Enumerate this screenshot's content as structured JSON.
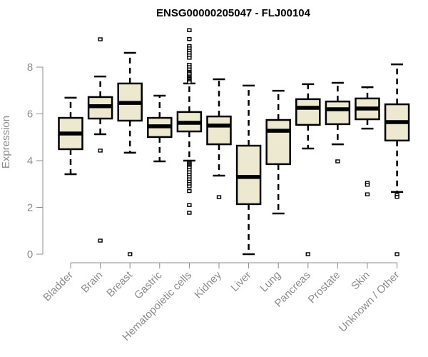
{
  "chart_data": {
    "type": "boxplot",
    "title": "ENSG00000205047 - FLJ00104",
    "xlabel": "",
    "ylabel": "Expression",
    "ylim": [
      0,
      9.6
    ],
    "yticks": [
      0,
      2,
      4,
      6,
      8
    ],
    "grid": false,
    "legend": "none",
    "box_fill": "#ede8d0",
    "box_stroke": "#000000",
    "axis_color": "#8c8c8c",
    "categories": [
      "Bladder",
      "Brain",
      "Breast",
      "Gastric",
      "Hematopoietic cells",
      "Kidney",
      "Liver",
      "Lung",
      "Pancreas",
      "Prostate",
      "Skin",
      "Unknown / Other"
    ],
    "series": [
      {
        "name": "Bladder",
        "whisker_low": 3.42,
        "q1": 4.49,
        "median": 5.16,
        "q3": 5.83,
        "whisker_high": 6.69,
        "outliers": []
      },
      {
        "name": "Brain",
        "whisker_low": 5.13,
        "q1": 5.8,
        "median": 6.33,
        "q3": 6.72,
        "whisker_high": 7.6,
        "outliers": [
          9.19,
          4.43,
          0.58
        ]
      },
      {
        "name": "Breast",
        "whisker_low": 4.34,
        "q1": 5.71,
        "median": 6.47,
        "q3": 7.3,
        "whisker_high": 8.61,
        "outliers": [
          0.0
        ]
      },
      {
        "name": "Gastric",
        "whisker_low": 3.97,
        "q1": 5.01,
        "median": 5.47,
        "q3": 5.83,
        "whisker_high": 6.78,
        "outliers": []
      },
      {
        "name": "Hematopoietic cells",
        "whisker_low": 4.0,
        "q1": 5.25,
        "median": 5.62,
        "q3": 6.08,
        "whisker_high": 7.3,
        "outliers": [
          9.58,
          9.2,
          8.9,
          8.8,
          8.7,
          8.6,
          8.5,
          8.4,
          8.1,
          8.0,
          7.9,
          7.8,
          7.75,
          7.7,
          7.6,
          7.55,
          7.5,
          7.45,
          7.4,
          7.35,
          3.95,
          3.9,
          3.85,
          3.8,
          3.75,
          3.7,
          3.6,
          3.5,
          3.4,
          3.3,
          3.2,
          3.1,
          3.0,
          2.9,
          2.7,
          2.1,
          1.77
        ]
      },
      {
        "name": "Kidney",
        "whisker_low": 3.36,
        "q1": 4.7,
        "median": 5.5,
        "q3": 5.89,
        "whisker_high": 7.48,
        "outliers": [
          2.44
        ]
      },
      {
        "name": "Liver",
        "whisker_low": 0.0,
        "q1": 2.14,
        "median": 3.3,
        "q3": 4.64,
        "whisker_high": 7.21,
        "outliers": []
      },
      {
        "name": "Lung",
        "whisker_low": 1.74,
        "q1": 3.85,
        "median": 5.28,
        "q3": 5.74,
        "whisker_high": 6.99,
        "outliers": []
      },
      {
        "name": "Pancreas",
        "whisker_low": 4.52,
        "q1": 5.53,
        "median": 6.26,
        "q3": 6.63,
        "whisker_high": 7.27,
        "outliers": [
          0.0
        ]
      },
      {
        "name": "Prostate",
        "whisker_low": 4.7,
        "q1": 5.56,
        "median": 6.2,
        "q3": 6.53,
        "whisker_high": 7.33,
        "outliers": [
          3.97
        ]
      },
      {
        "name": "Skin",
        "whisker_low": 5.37,
        "q1": 5.77,
        "median": 6.23,
        "q3": 6.66,
        "whisker_high": 7.14,
        "outliers": [
          3.05,
          2.97,
          2.56
        ]
      },
      {
        "name": "Unknown / Other",
        "whisker_low": 2.66,
        "q1": 4.86,
        "median": 5.65,
        "q3": 6.41,
        "whisker_high": 8.12,
        "outliers": [
          2.53,
          2.45,
          0.0
        ]
      }
    ]
  }
}
